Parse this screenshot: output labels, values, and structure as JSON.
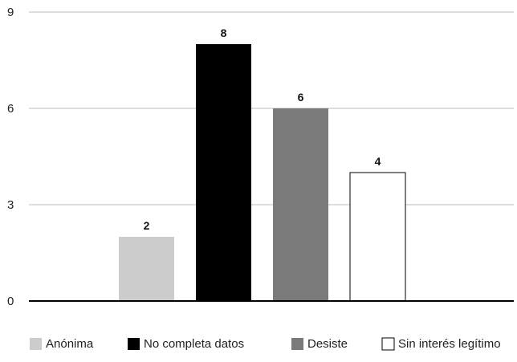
{
  "chart_data": {
    "type": "bar",
    "title": "",
    "xlabel": "",
    "ylabel": "",
    "ylim": [
      0,
      9
    ],
    "yticks": [
      0,
      3,
      6,
      9
    ],
    "grid": true,
    "legend_position": "bottom",
    "categories": [
      "Anónima",
      "No completa datos",
      "Desiste",
      "Sin interés legítimo"
    ],
    "values": [
      2,
      8,
      6,
      4
    ],
    "colors": [
      "#cccccc",
      "#000000",
      "#7a7a7a",
      "#ffffff"
    ],
    "data_labels": [
      "2",
      "8",
      "6",
      "4"
    ]
  }
}
